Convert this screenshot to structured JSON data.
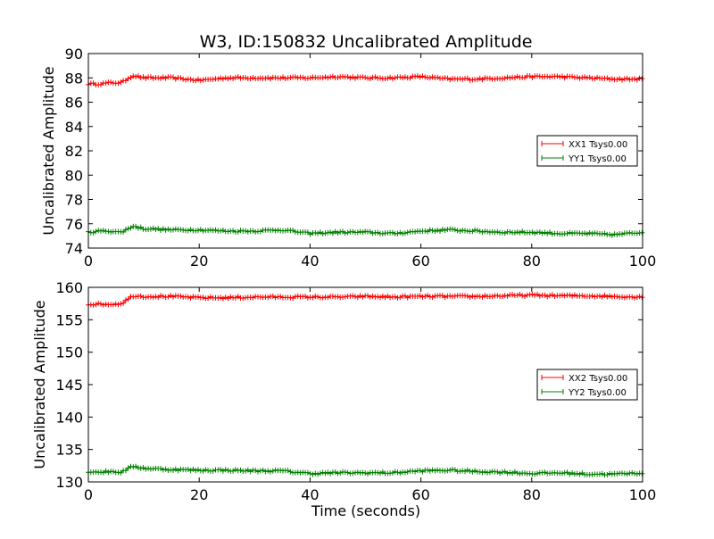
{
  "title": "W3, ID:150832 Uncalibrated Amplitude",
  "xlabel": "Time (seconds)",
  "chart_data": [
    {
      "type": "line",
      "title": "W3, ID:150832 Uncalibrated Amplitude",
      "xlabel": "",
      "ylabel": "Uncalibrated Amplitude",
      "xlim": [
        0,
        100
      ],
      "ylim": [
        74,
        90
      ],
      "xticks": [
        "0",
        "20",
        "40",
        "60",
        "80",
        "100"
      ],
      "yticks": [
        "74",
        "76",
        "78",
        "80",
        "82",
        "84",
        "86",
        "88",
        "90"
      ],
      "grid": false,
      "legend_position": "right",
      "x": [
        0,
        2,
        4,
        6,
        8,
        10,
        15,
        20,
        25,
        30,
        35,
        40,
        45,
        50,
        55,
        60,
        65,
        70,
        75,
        80,
        85,
        90,
        95,
        100
      ],
      "series": [
        {
          "name": "XX1 Tsys0.00",
          "color": "#ff0000",
          "values": [
            87.5,
            87.5,
            87.6,
            87.6,
            88.2,
            88.0,
            88.0,
            87.8,
            88.0,
            88.0,
            88.0,
            88.0,
            88.1,
            88.0,
            88.0,
            88.1,
            87.9,
            87.9,
            88.0,
            88.1,
            88.1,
            88.0,
            87.9,
            87.9
          ]
        },
        {
          "name": "YY1 Tsys0.00",
          "color": "#008000",
          "values": [
            75.3,
            75.4,
            75.4,
            75.3,
            75.8,
            75.6,
            75.5,
            75.5,
            75.4,
            75.4,
            75.5,
            75.2,
            75.3,
            75.3,
            75.2,
            75.4,
            75.5,
            75.4,
            75.3,
            75.3,
            75.2,
            75.2,
            75.1,
            75.3
          ]
        }
      ]
    },
    {
      "type": "line",
      "title": "",
      "xlabel": "Time (seconds)",
      "ylabel": "Uncalibrated Amplitude",
      "xlim": [
        0,
        100
      ],
      "ylim": [
        130,
        160
      ],
      "xticks": [
        "0",
        "20",
        "40",
        "60",
        "80",
        "100"
      ],
      "yticks": [
        "130",
        "135",
        "140",
        "145",
        "150",
        "155",
        "160"
      ],
      "grid": false,
      "legend_position": "right",
      "x": [
        0,
        2,
        4,
        6,
        8,
        10,
        15,
        20,
        25,
        30,
        35,
        40,
        45,
        50,
        55,
        60,
        65,
        70,
        75,
        80,
        85,
        90,
        95,
        100
      ],
      "series": [
        {
          "name": "XX2 Tsys0.00",
          "color": "#ff0000",
          "values": [
            157.4,
            157.4,
            157.4,
            157.5,
            158.7,
            158.6,
            158.6,
            158.4,
            158.4,
            158.5,
            158.5,
            158.5,
            158.5,
            158.6,
            158.5,
            158.6,
            158.6,
            158.6,
            158.7,
            158.8,
            158.7,
            158.7,
            158.6,
            158.5
          ]
        },
        {
          "name": "YY2 Tsys0.00",
          "color": "#008000",
          "values": [
            131.6,
            131.5,
            131.6,
            131.5,
            132.4,
            132.1,
            131.9,
            131.8,
            131.8,
            131.7,
            131.7,
            131.3,
            131.4,
            131.4,
            131.4,
            131.7,
            131.8,
            131.6,
            131.5,
            131.3,
            131.4,
            131.2,
            131.2,
            131.4
          ]
        }
      ]
    }
  ]
}
